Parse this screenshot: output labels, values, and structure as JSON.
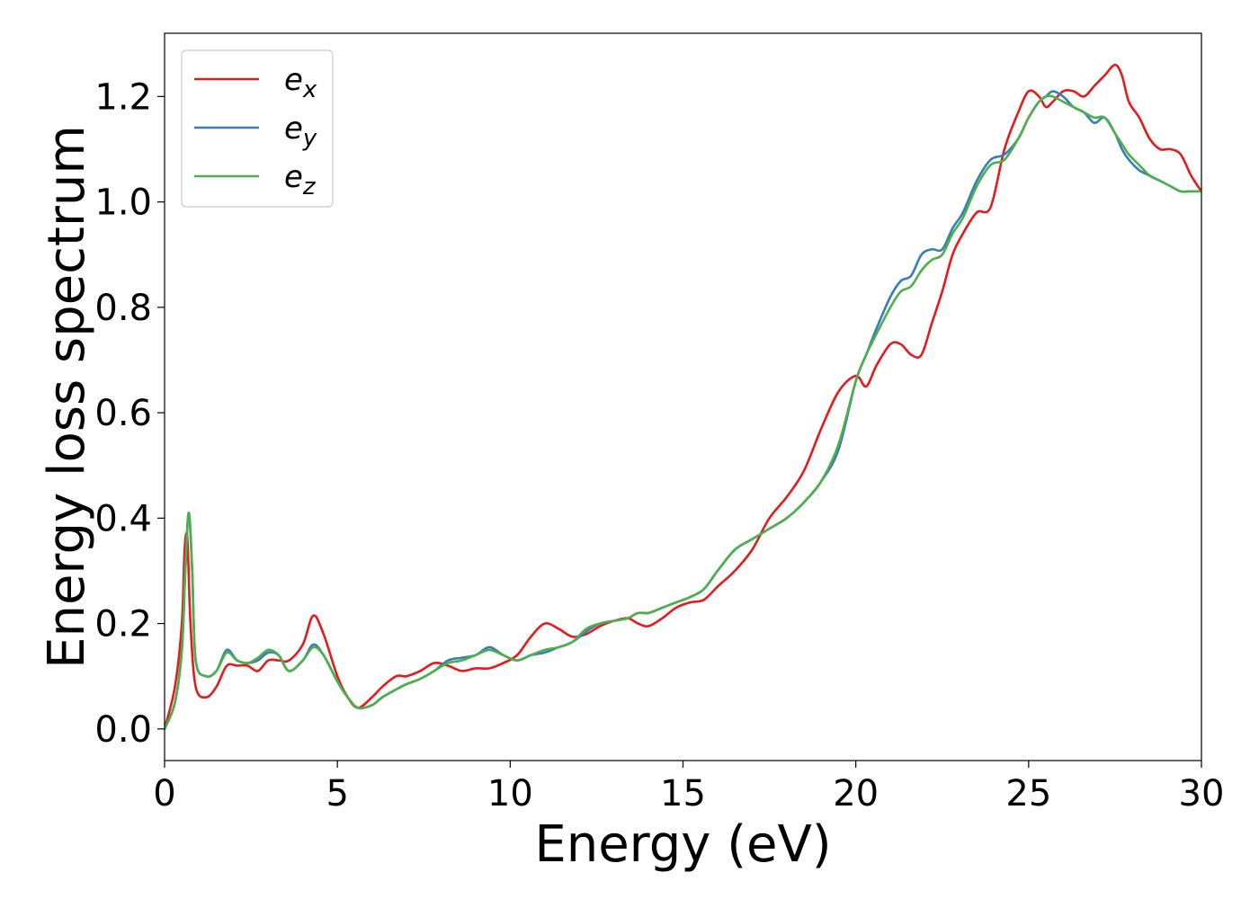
{
  "chart_data": {
    "type": "line",
    "title": "",
    "xlabel": "Energy (eV)",
    "ylabel": "Energy loss spectrum",
    "xlim": [
      0,
      30
    ],
    "ylim": [
      -0.06,
      1.32
    ],
    "xticks": [
      0,
      5,
      10,
      15,
      20,
      25,
      30
    ],
    "yticks": [
      0.0,
      0.2,
      0.4,
      0.6,
      0.8,
      1.0,
      1.2
    ],
    "xtick_labels": [
      "0",
      "5",
      "10",
      "15",
      "20",
      "25",
      "30"
    ],
    "ytick_labels": [
      "0.0",
      "0.2",
      "0.4",
      "0.6",
      "0.8",
      "1.0",
      "1.2"
    ],
    "grid": false,
    "legend_position": "top-left",
    "series": [
      {
        "name": "e",
        "subscript": "x",
        "color": "#e41a1c",
        "x": [
          0,
          0.3,
          0.5,
          0.58,
          0.66,
          0.75,
          0.9,
          1.2,
          1.5,
          1.8,
          2.1,
          2.4,
          2.7,
          3.0,
          3.3,
          3.6,
          4.0,
          4.3,
          4.6,
          5.0,
          5.3,
          5.6,
          6.0,
          6.3,
          6.7,
          7.0,
          7.4,
          7.8,
          8.2,
          8.6,
          9.0,
          9.4,
          9.8,
          10.2,
          10.6,
          11.0,
          11.4,
          11.8,
          12.2,
          12.6,
          13.0,
          13.4,
          13.7,
          14.0,
          14.4,
          14.8,
          15.2,
          15.6,
          16.0,
          16.5,
          17.0,
          17.5,
          18.0,
          18.5,
          19.0,
          19.5,
          20.0,
          20.3,
          20.6,
          21.0,
          21.3,
          21.6,
          21.9,
          22.2,
          22.5,
          22.8,
          23.1,
          23.5,
          23.9,
          24.3,
          24.7,
          25.0,
          25.3,
          25.5,
          25.7,
          26.0,
          26.3,
          26.6,
          26.9,
          27.2,
          27.5,
          27.7,
          27.9,
          28.2,
          28.5,
          28.8,
          29.1,
          29.4,
          29.7,
          30.0
        ],
        "values": [
          0.0,
          0.08,
          0.2,
          0.34,
          0.36,
          0.2,
          0.08,
          0.06,
          0.08,
          0.12,
          0.12,
          0.12,
          0.11,
          0.13,
          0.13,
          0.13,
          0.16,
          0.215,
          0.18,
          0.1,
          0.06,
          0.04,
          0.06,
          0.08,
          0.1,
          0.1,
          0.11,
          0.125,
          0.12,
          0.11,
          0.115,
          0.115,
          0.125,
          0.14,
          0.175,
          0.2,
          0.19,
          0.175,
          0.18,
          0.195,
          0.205,
          0.21,
          0.2,
          0.195,
          0.21,
          0.23,
          0.24,
          0.245,
          0.27,
          0.3,
          0.34,
          0.4,
          0.44,
          0.49,
          0.57,
          0.64,
          0.67,
          0.65,
          0.69,
          0.73,
          0.73,
          0.71,
          0.71,
          0.77,
          0.83,
          0.9,
          0.94,
          0.98,
          0.99,
          1.1,
          1.17,
          1.21,
          1.2,
          1.18,
          1.19,
          1.21,
          1.21,
          1.2,
          1.22,
          1.24,
          1.26,
          1.24,
          1.19,
          1.16,
          1.12,
          1.1,
          1.1,
          1.09,
          1.05,
          1.02
        ]
      },
      {
        "name": "e",
        "subscript": "y",
        "color": "#377eb8",
        "x": [
          0,
          0.3,
          0.5,
          0.6,
          0.7,
          0.8,
          0.9,
          1.2,
          1.5,
          1.8,
          2.1,
          2.4,
          2.7,
          3.0,
          3.3,
          3.6,
          4.0,
          4.3,
          4.6,
          5.0,
          5.3,
          5.6,
          6.0,
          6.3,
          6.7,
          7.0,
          7.4,
          7.8,
          8.2,
          8.6,
          9.0,
          9.4,
          9.8,
          10.2,
          10.6,
          11.0,
          11.4,
          11.8,
          12.2,
          12.6,
          13.0,
          13.4,
          13.7,
          14.0,
          14.4,
          14.8,
          15.2,
          15.6,
          16.0,
          16.5,
          17.0,
          17.5,
          18.0,
          18.5,
          19.0,
          19.5,
          20.0,
          20.3,
          20.6,
          21.0,
          21.3,
          21.6,
          21.9,
          22.2,
          22.5,
          22.8,
          23.1,
          23.5,
          23.9,
          24.3,
          24.7,
          25.0,
          25.3,
          25.5,
          25.7,
          26.0,
          26.3,
          26.6,
          26.9,
          27.2,
          27.5,
          27.7,
          27.9,
          28.2,
          28.5,
          28.8,
          29.1,
          29.4,
          29.7,
          30.0
        ],
        "values": [
          0.0,
          0.05,
          0.15,
          0.3,
          0.41,
          0.3,
          0.13,
          0.1,
          0.11,
          0.15,
          0.13,
          0.125,
          0.13,
          0.145,
          0.14,
          0.11,
          0.13,
          0.16,
          0.14,
          0.09,
          0.06,
          0.04,
          0.045,
          0.06,
          0.075,
          0.085,
          0.095,
          0.11,
          0.13,
          0.135,
          0.14,
          0.155,
          0.14,
          0.13,
          0.14,
          0.145,
          0.155,
          0.165,
          0.185,
          0.2,
          0.205,
          0.21,
          0.22,
          0.22,
          0.23,
          0.24,
          0.25,
          0.265,
          0.3,
          0.34,
          0.36,
          0.38,
          0.4,
          0.43,
          0.47,
          0.53,
          0.66,
          0.71,
          0.76,
          0.82,
          0.85,
          0.86,
          0.9,
          0.91,
          0.91,
          0.95,
          0.98,
          1.04,
          1.08,
          1.09,
          1.12,
          1.16,
          1.19,
          1.2,
          1.21,
          1.2,
          1.18,
          1.17,
          1.15,
          1.16,
          1.13,
          1.1,
          1.08,
          1.06,
          1.05,
          1.04,
          1.03,
          1.02,
          1.02,
          1.02
        ]
      },
      {
        "name": "e",
        "subscript": "z",
        "color": "#4daf4a",
        "x": [
          0,
          0.3,
          0.5,
          0.6,
          0.7,
          0.8,
          0.9,
          1.2,
          1.5,
          1.8,
          2.1,
          2.4,
          2.7,
          3.0,
          3.3,
          3.6,
          4.0,
          4.3,
          4.6,
          5.0,
          5.3,
          5.6,
          6.0,
          6.3,
          6.7,
          7.0,
          7.4,
          7.8,
          8.2,
          8.6,
          9.0,
          9.4,
          9.8,
          10.2,
          10.6,
          11.0,
          11.4,
          11.8,
          12.2,
          12.6,
          13.0,
          13.4,
          13.7,
          14.0,
          14.4,
          14.8,
          15.2,
          15.6,
          16.0,
          16.5,
          17.0,
          17.5,
          18.0,
          18.5,
          19.0,
          19.5,
          20.0,
          20.3,
          20.6,
          21.0,
          21.3,
          21.6,
          21.9,
          22.2,
          22.5,
          22.8,
          23.1,
          23.5,
          23.9,
          24.3,
          24.7,
          25.0,
          25.3,
          25.5,
          25.7,
          26.0,
          26.3,
          26.6,
          26.9,
          27.2,
          27.5,
          27.7,
          27.9,
          28.2,
          28.5,
          28.8,
          29.1,
          29.4,
          29.7,
          30.0
        ],
        "values": [
          0.0,
          0.05,
          0.15,
          0.3,
          0.41,
          0.3,
          0.13,
          0.1,
          0.11,
          0.145,
          0.13,
          0.125,
          0.135,
          0.15,
          0.14,
          0.11,
          0.13,
          0.155,
          0.14,
          0.09,
          0.06,
          0.04,
          0.045,
          0.06,
          0.075,
          0.085,
          0.095,
          0.11,
          0.125,
          0.13,
          0.14,
          0.15,
          0.14,
          0.13,
          0.14,
          0.15,
          0.155,
          0.165,
          0.19,
          0.2,
          0.205,
          0.21,
          0.22,
          0.22,
          0.23,
          0.24,
          0.25,
          0.265,
          0.3,
          0.34,
          0.36,
          0.38,
          0.4,
          0.43,
          0.47,
          0.54,
          0.66,
          0.71,
          0.75,
          0.8,
          0.83,
          0.84,
          0.87,
          0.89,
          0.9,
          0.94,
          0.97,
          1.03,
          1.07,
          1.08,
          1.12,
          1.16,
          1.19,
          1.2,
          1.2,
          1.19,
          1.18,
          1.17,
          1.16,
          1.16,
          1.13,
          1.11,
          1.09,
          1.07,
          1.05,
          1.04,
          1.03,
          1.02,
          1.02,
          1.02
        ]
      }
    ]
  }
}
